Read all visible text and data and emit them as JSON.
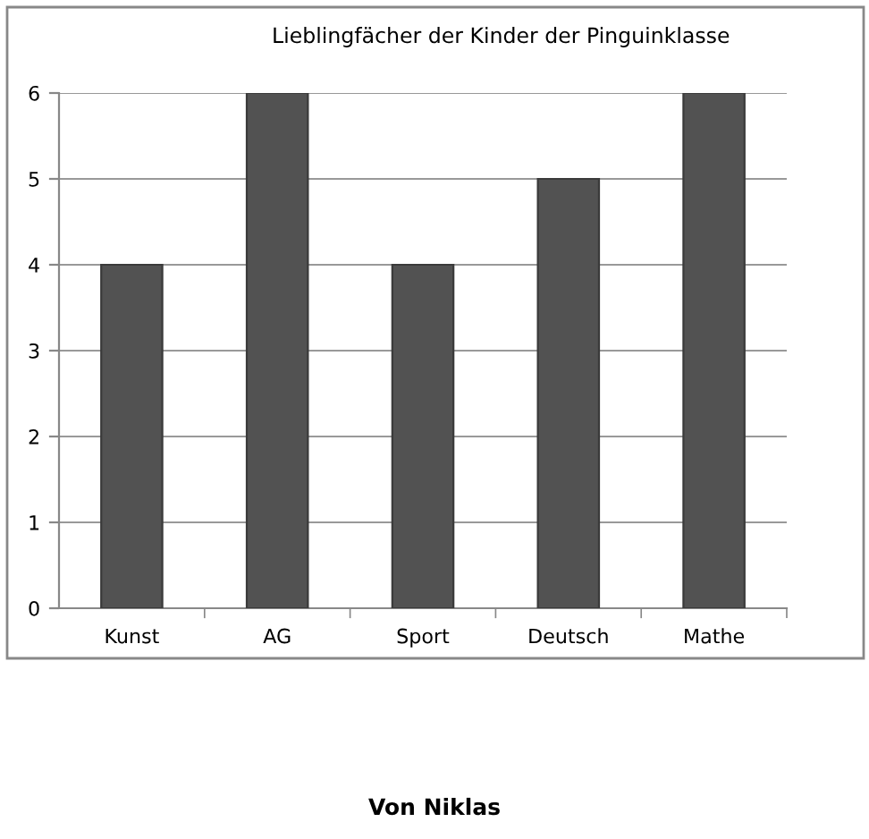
{
  "chart_data": {
    "type": "bar",
    "title": "Lieblingfächer der Kinder der Pinguinklasse",
    "categories": [
      "Kunst",
      "AG",
      "Sport",
      "Deutsch",
      "Mathe"
    ],
    "values": [
      4,
      6,
      4,
      5,
      6
    ],
    "color": "#525252",
    "ylim": [
      0,
      6
    ],
    "yticks": [
      0,
      1,
      2,
      3,
      4,
      5,
      6
    ],
    "grid": "y",
    "annotations": [
      "Von Niklas"
    ]
  }
}
